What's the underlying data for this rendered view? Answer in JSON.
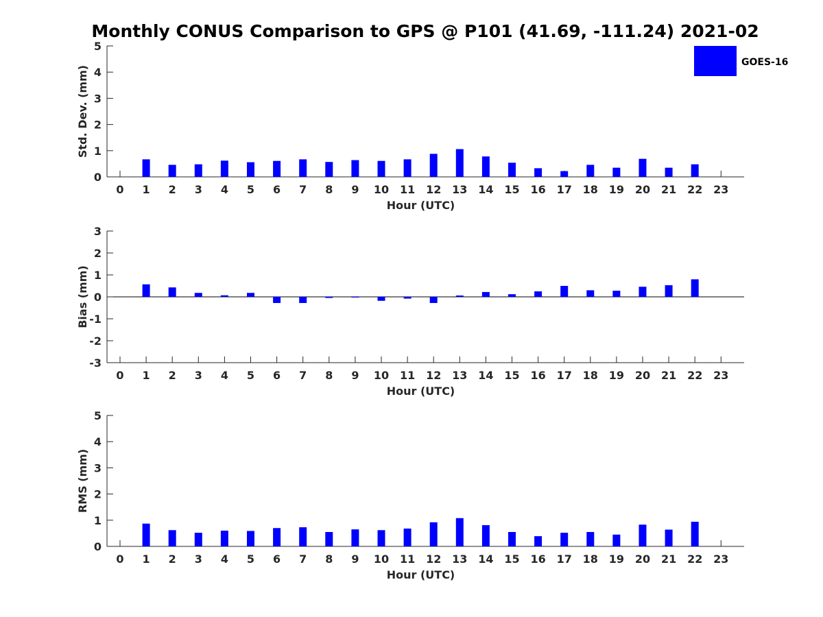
{
  "title": "Monthly CONUS Comparison to GPS @ P101 (41.69, -111.24) 2021-02",
  "legend": {
    "label": "GOES-16",
    "placement": "top-right"
  },
  "colors": {
    "bar": "#0000ff",
    "axis": "#262626"
  },
  "chart_data": [
    {
      "type": "bar",
      "xlabel": "Hour (UTC)",
      "ylabel": "Std. Dev. (mm)",
      "ylim": [
        0,
        5
      ],
      "yticks": [
        0,
        1,
        2,
        3,
        4,
        5
      ],
      "categories": [
        0,
        1,
        2,
        3,
        4,
        5,
        6,
        7,
        8,
        9,
        10,
        11,
        12,
        13,
        14,
        15,
        16,
        17,
        18,
        19,
        20,
        21,
        22,
        23
      ],
      "series": [
        {
          "name": "GOES-16",
          "values": [
            null,
            0.67,
            0.46,
            0.48,
            0.62,
            0.56,
            0.61,
            0.67,
            0.57,
            0.64,
            0.61,
            0.67,
            0.88,
            1.06,
            0.78,
            0.54,
            0.33,
            0.22,
            0.46,
            0.35,
            0.69,
            0.35,
            0.48,
            null
          ]
        }
      ]
    },
    {
      "type": "bar",
      "xlabel": "Hour (UTC)",
      "ylabel": "Bias (mm)",
      "ylim": [
        -3,
        3
      ],
      "yticks": [
        -3,
        -2,
        -1,
        0,
        1,
        2,
        3
      ],
      "categories": [
        0,
        1,
        2,
        3,
        4,
        5,
        6,
        7,
        8,
        9,
        10,
        11,
        12,
        13,
        14,
        15,
        16,
        17,
        18,
        19,
        20,
        21,
        22,
        23
      ],
      "series": [
        {
          "name": "GOES-16",
          "values": [
            null,
            0.57,
            0.43,
            0.18,
            0.07,
            0.18,
            -0.28,
            -0.28,
            -0.05,
            -0.02,
            -0.18,
            -0.08,
            -0.28,
            0.06,
            0.22,
            0.12,
            0.25,
            0.5,
            0.3,
            0.28,
            0.46,
            0.53,
            0.8,
            null
          ]
        }
      ]
    },
    {
      "type": "bar",
      "xlabel": "Hour (UTC)",
      "ylabel": "RMS (mm)",
      "ylim": [
        0,
        5
      ],
      "yticks": [
        0,
        1,
        2,
        3,
        4,
        5
      ],
      "categories": [
        0,
        1,
        2,
        3,
        4,
        5,
        6,
        7,
        8,
        9,
        10,
        11,
        12,
        13,
        14,
        15,
        16,
        17,
        18,
        19,
        20,
        21,
        22,
        23
      ],
      "series": [
        {
          "name": "GOES-16",
          "values": [
            null,
            0.87,
            0.62,
            0.52,
            0.6,
            0.59,
            0.7,
            0.73,
            0.55,
            0.65,
            0.62,
            0.68,
            0.92,
            1.08,
            0.81,
            0.55,
            0.39,
            0.52,
            0.55,
            0.45,
            0.83,
            0.64,
            0.94,
            null
          ]
        }
      ]
    }
  ]
}
